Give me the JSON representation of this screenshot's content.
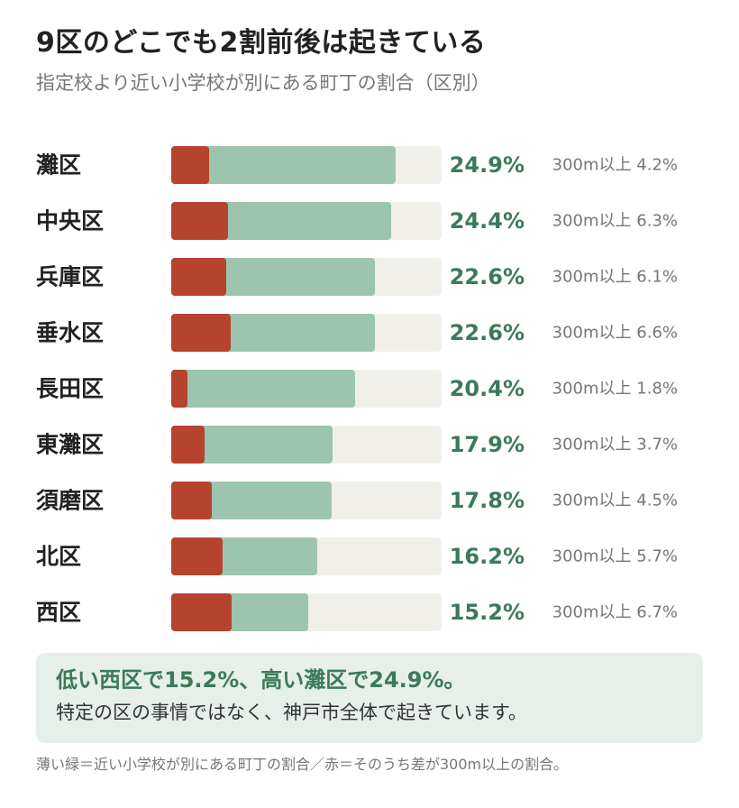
{
  "title": "9区のどこでも2割前後は起きている",
  "subtitle": "指定校より近い小学校が別にある町丁の割合（区別）",
  "colors": {
    "near_school": "#9cc4ae",
    "over_300m": "#b5432e",
    "track": "#f0efea",
    "accent": "#3b7a5a"
  },
  "chart_data": {
    "type": "bar",
    "orientation": "horizontal",
    "categories": [
      "灘区",
      "中央区",
      "兵庫区",
      "垂水区",
      "長田区",
      "東灘区",
      "須磨区",
      "北区",
      "西区"
    ],
    "xlim": [
      0,
      30
    ],
    "series": [
      {
        "values": [
          24.9,
          24.4,
          22.6,
          22.6,
          20.4,
          17.9,
          17.8,
          16.2,
          15.2
        ],
        "labels": [
          "24.9%",
          "24.4%",
          "22.6%",
          "22.6%",
          "20.4%",
          "17.9%",
          "17.8%",
          "16.2%",
          "15.2%"
        ]
      },
      {
        "values": [
          4.2,
          6.3,
          6.1,
          6.6,
          1.8,
          3.7,
          4.5,
          5.7,
          6.7
        ],
        "labels": [
          "300m以上 4.2%",
          "300m以上 6.3%",
          "300m以上 6.1%",
          "300m以上 6.6%",
          "300m以上 1.8%",
          "300m以上 3.7%",
          "300m以上 4.5%",
          "300m以上 5.7%",
          "300m以上 6.7%"
        ]
      }
    ]
  },
  "callout": {
    "headline": "低い西区で15.2%、高い灘区で24.9%。",
    "body": "特定の区の事情ではなく、神戸市全体で起きています。"
  },
  "footnote": "薄い緑＝近い小学校が別にある町丁の割合／赤＝そのうち差が300m以上の割合。"
}
